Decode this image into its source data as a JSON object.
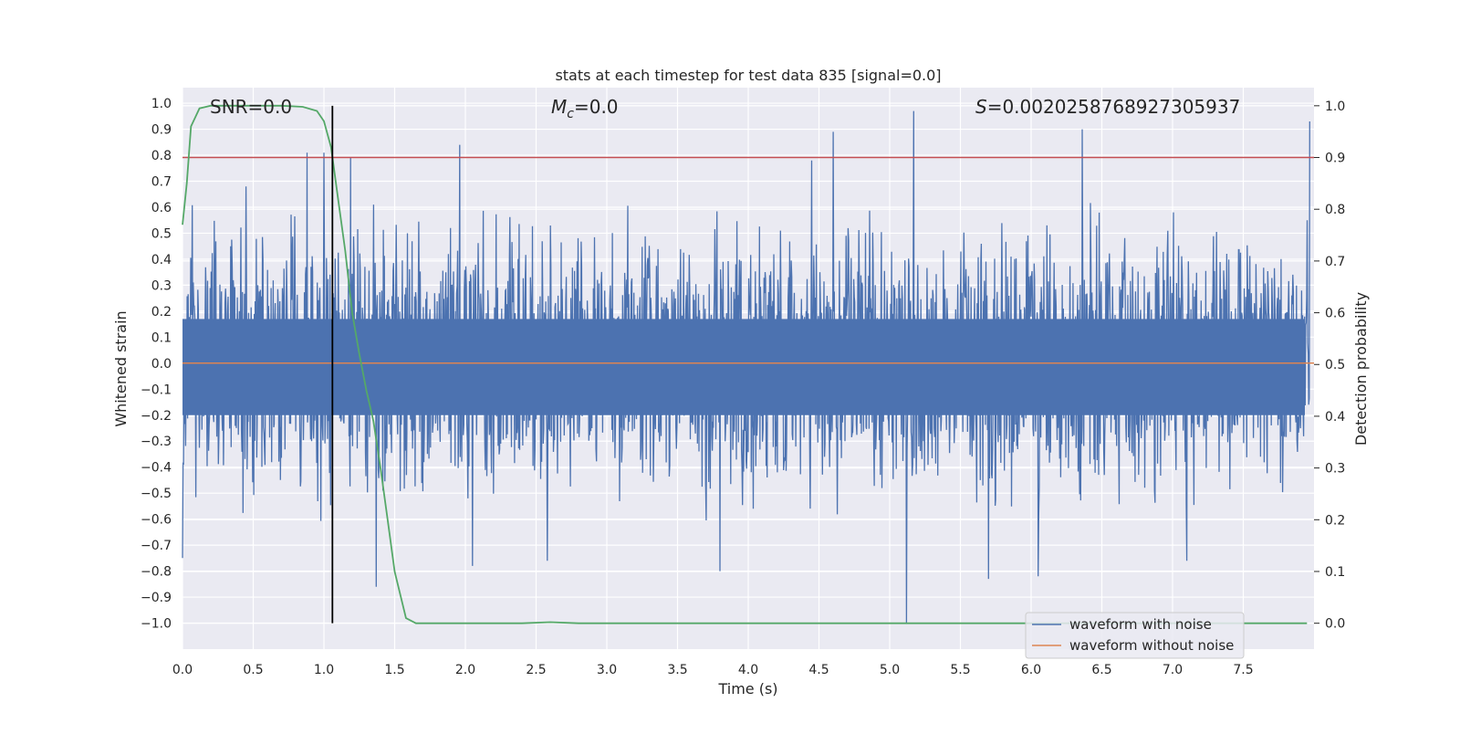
{
  "chart_data": {
    "type": "line",
    "title": "stats at each timestep for test data 835 [signal=0.0]",
    "xlabel": "Time (s)",
    "ylabel_left": "Whitened strain",
    "ylabel_right": "Detection probability",
    "xlim": [
      0.0,
      8.0
    ],
    "ylim_left": [
      -1.1,
      1.06
    ],
    "ylim_right": [
      -0.05,
      1.035
    ],
    "x_ticks": [
      "0.0",
      "0.5",
      "1.0",
      "1.5",
      "2.0",
      "2.5",
      "3.0",
      "3.5",
      "4.0",
      "4.5",
      "5.0",
      "5.5",
      "6.0",
      "6.5",
      "7.0",
      "7.5"
    ],
    "y_left_ticks": [
      "1.0",
      "0.9",
      "0.8",
      "0.7",
      "0.6",
      "0.5",
      "0.4",
      "0.3",
      "0.2",
      "0.1",
      "0.0",
      "−0.1",
      "−0.2",
      "−0.3",
      "−0.4",
      "−0.5",
      "−0.6",
      "−0.7",
      "−0.8",
      "−0.9",
      "−1.0"
    ],
    "y_right_ticks": [
      "1.0",
      "0.9",
      "0.8",
      "0.7",
      "0.6",
      "0.5",
      "0.4",
      "0.3",
      "0.2",
      "0.1",
      "0.0"
    ],
    "grid": true,
    "legend_position": "bottom-right",
    "annotations": {
      "snr": "SNR=0.0",
      "mc": "M",
      "mc_sub": "c",
      "mc_value": "=0.0",
      "s": "S",
      "s_value": "=0.0020258768927305937"
    },
    "threshold_probability": 0.9,
    "vertical_marker_time": 1.06,
    "series": [
      {
        "name": "waveform with noise",
        "color": "#4c72b0",
        "axis": "left",
        "description_stats": {
          "typical_abs_max": 0.45,
          "peak_max": 0.97,
          "peak_min": -1.0
        },
        "peaks": [
          {
            "x": 0.0,
            "y": -0.75
          },
          {
            "x": 0.45,
            "y": 0.68
          },
          {
            "x": 0.88,
            "y": 0.81
          },
          {
            "x": 1.0,
            "y": 0.81
          },
          {
            "x": 1.19,
            "y": 0.79
          },
          {
            "x": 1.37,
            "y": -0.86
          },
          {
            "x": 1.96,
            "y": 0.84
          },
          {
            "x": 2.05,
            "y": -0.78
          },
          {
            "x": 2.58,
            "y": -0.76
          },
          {
            "x": 3.8,
            "y": -0.8
          },
          {
            "x": 4.45,
            "y": 0.78
          },
          {
            "x": 4.6,
            "y": 0.89
          },
          {
            "x": 5.12,
            "y": -1.0
          },
          {
            "x": 5.17,
            "y": 0.97
          },
          {
            "x": 5.7,
            "y": -0.83
          },
          {
            "x": 6.05,
            "y": -0.82
          },
          {
            "x": 6.36,
            "y": 0.9
          },
          {
            "x": 7.1,
            "y": -0.76
          },
          {
            "x": 7.97,
            "y": 0.93
          }
        ]
      },
      {
        "name": "waveform without noise",
        "color": "#dd8452",
        "axis": "left",
        "x": [
          0.0,
          8.0
        ],
        "y": [
          0.0,
          0.0
        ]
      },
      {
        "name": "",
        "color": "#55a868",
        "axis": "right",
        "x": [
          0.0,
          0.03,
          0.06,
          0.12,
          0.2,
          0.3,
          0.5,
          0.7,
          0.85,
          0.95,
          1.0,
          1.05,
          1.1,
          1.15,
          1.2,
          1.25,
          1.3,
          1.35,
          1.4,
          1.45,
          1.5,
          1.58,
          1.65,
          2.0,
          2.4,
          2.6,
          2.8,
          3.5,
          5.0,
          6.0,
          7.0,
          7.95
        ],
        "y": [
          0.77,
          0.85,
          0.96,
          0.995,
          1.0,
          1.0,
          1.0,
          1.0,
          0.998,
          0.99,
          0.97,
          0.92,
          0.82,
          0.72,
          0.6,
          0.52,
          0.45,
          0.39,
          0.3,
          0.2,
          0.1,
          0.01,
          0.0,
          0.0,
          0.0,
          0.002,
          0.0,
          0.0,
          0.0,
          0.0,
          0.0,
          0.0
        ]
      }
    ]
  }
}
